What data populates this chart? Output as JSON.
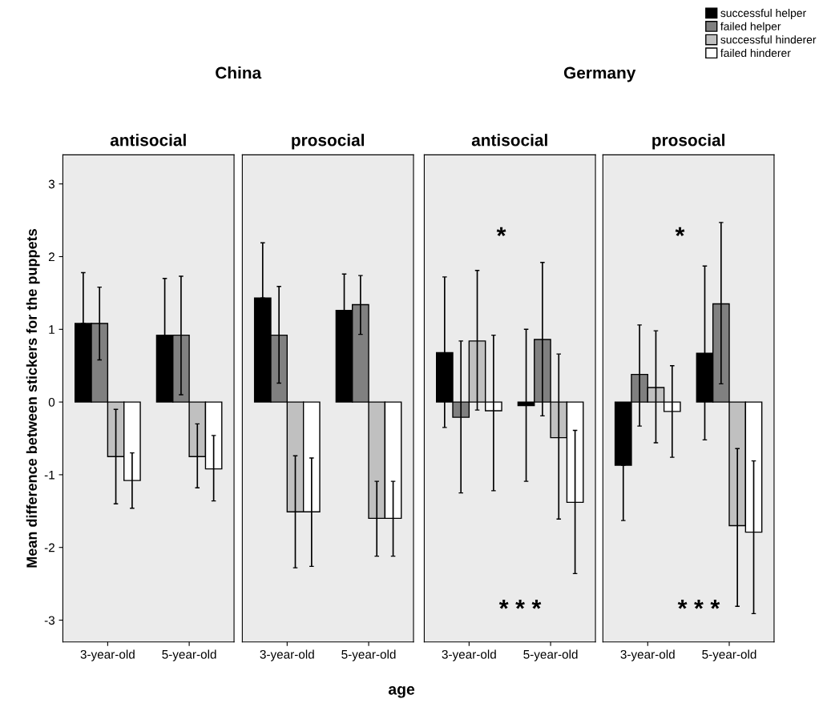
{
  "chart_data": [
    {
      "type": "bar",
      "title": "antisocial",
      "subtitle": "China",
      "ylabel": "Mean difference between stickers for the puppets",
      "categories": [
        "3-year-old",
        "5-year-old"
      ],
      "ylim": [
        -3.3,
        3.4
      ],
      "yticks": [
        -3,
        -2,
        -1,
        0,
        1,
        2,
        3
      ],
      "grid": false,
      "series": [
        {
          "color": "#000000",
          "values": [
            1.08,
            0.92
          ],
          "errors": [
            [
              1.08,
              1.78
            ],
            [
              0.92,
              1.7
            ]
          ]
        },
        {
          "color": "#808080",
          "values": [
            1.08,
            0.92
          ],
          "errors": [
            [
              0.58,
              1.58
            ],
            [
              0.1,
              1.73
            ]
          ]
        },
        {
          "color": "#c0c0c0",
          "values": [
            -0.75,
            -0.75
          ],
          "errors": [
            [
              -1.4,
              -0.1
            ],
            [
              -1.18,
              -0.3
            ]
          ]
        },
        {
          "color": "#ffffff",
          "values": [
            -1.08,
            -0.92
          ],
          "errors": [
            [
              -1.46,
              -0.7
            ],
            [
              -1.36,
              -0.46
            ]
          ]
        }
      ]
    },
    {
      "type": "bar",
      "title": "prosocial",
      "xlabel": "age",
      "categories": [
        "3-year-old",
        "5-year-old"
      ],
      "ylim": [
        -3.3,
        3.4
      ],
      "yticks": [
        -3,
        -2,
        -1,
        0,
        1,
        2,
        3
      ],
      "tick_labels": "x",
      "grid": false,
      "series": [
        {
          "color": "#000000",
          "values": [
            1.43,
            1.26
          ],
          "errors": [
            [
              1.43,
              2.19
            ],
            [
              1.26,
              1.76
            ]
          ]
        },
        {
          "color": "#808080",
          "values": [
            0.92,
            1.34
          ],
          "errors": [
            [
              0.26,
              1.59
            ],
            [
              0.93,
              1.74
            ]
          ]
        },
        {
          "color": "#c0c0c0",
          "values": [
            -1.51,
            -1.6
          ],
          "errors": [
            [
              -2.28,
              -0.74
            ],
            [
              -2.12,
              -1.09
            ]
          ]
        },
        {
          "color": "#ffffff",
          "values": [
            -1.51,
            -1.6
          ],
          "errors": [
            [
              -2.26,
              -0.77
            ],
            [
              -2.12,
              -1.09
            ]
          ]
        }
      ]
    },
    {
      "type": "bar",
      "title": "antisocial",
      "subtitle": "Germany",
      "categories": [
        "3-year-old",
        "5-year-old"
      ],
      "ylim": [
        -3.3,
        3.4
      ],
      "yticks": [
        -3,
        -2,
        -1,
        0,
        1,
        2,
        3
      ],
      "tick_labels": "x",
      "grid": false,
      "annotations": [
        "*",
        "* * *"
      ],
      "series": [
        {
          "color": "#000000",
          "values": [
            0.68,
            -0.05
          ],
          "errors": [
            [
              -0.35,
              1.72
            ],
            [
              -1.09,
              1.0
            ]
          ]
        },
        {
          "color": "#808080",
          "values": [
            -0.21,
            0.86
          ],
          "errors": [
            [
              -1.25,
              0.84
            ],
            [
              -0.19,
              1.92
            ]
          ]
        },
        {
          "color": "#c0c0c0",
          "values": [
            0.84,
            -0.49
          ],
          "errors": [
            [
              -0.11,
              1.81
            ],
            [
              -1.61,
              0.66
            ]
          ]
        },
        {
          "color": "#ffffff",
          "values": [
            -0.12,
            -1.38
          ],
          "errors": [
            [
              -1.22,
              0.92
            ],
            [
              -2.36,
              -0.39
            ]
          ]
        }
      ]
    },
    {
      "type": "bar",
      "title": "prosocial",
      "categories": [
        "3-year-old",
        "5-year-old"
      ],
      "ylim": [
        -3.3,
        3.4
      ],
      "yticks": [
        -3,
        -2,
        -1,
        0,
        1,
        2,
        3
      ],
      "tick_labels": "x",
      "grid": false,
      "legend": "top right",
      "annotations": [
        "*",
        "* * *"
      ],
      "series": [
        {
          "name": "successful helper",
          "color": "#000000",
          "values": [
            -0.87,
            0.67
          ],
          "errors": [
            [
              -1.63,
              -0.87
            ],
            [
              -0.52,
              1.87
            ]
          ]
        },
        {
          "name": "failed helper",
          "color": "#808080",
          "values": [
            0.38,
            1.35
          ],
          "errors": [
            [
              -0.33,
              1.06
            ],
            [
              0.25,
              2.47
            ]
          ]
        },
        {
          "name": "successful hinderer",
          "color": "#c0c0c0",
          "values": [
            0.2,
            -1.7
          ],
          "errors": [
            [
              -0.56,
              0.98
            ],
            [
              -2.81,
              -0.64
            ]
          ]
        },
        {
          "name": "failed hinderer",
          "color": "#ffffff",
          "values": [
            -0.13,
            -1.79
          ],
          "errors": [
            [
              -0.76,
              0.5
            ],
            [
              -2.91,
              -0.81
            ]
          ]
        }
      ]
    }
  ]
}
